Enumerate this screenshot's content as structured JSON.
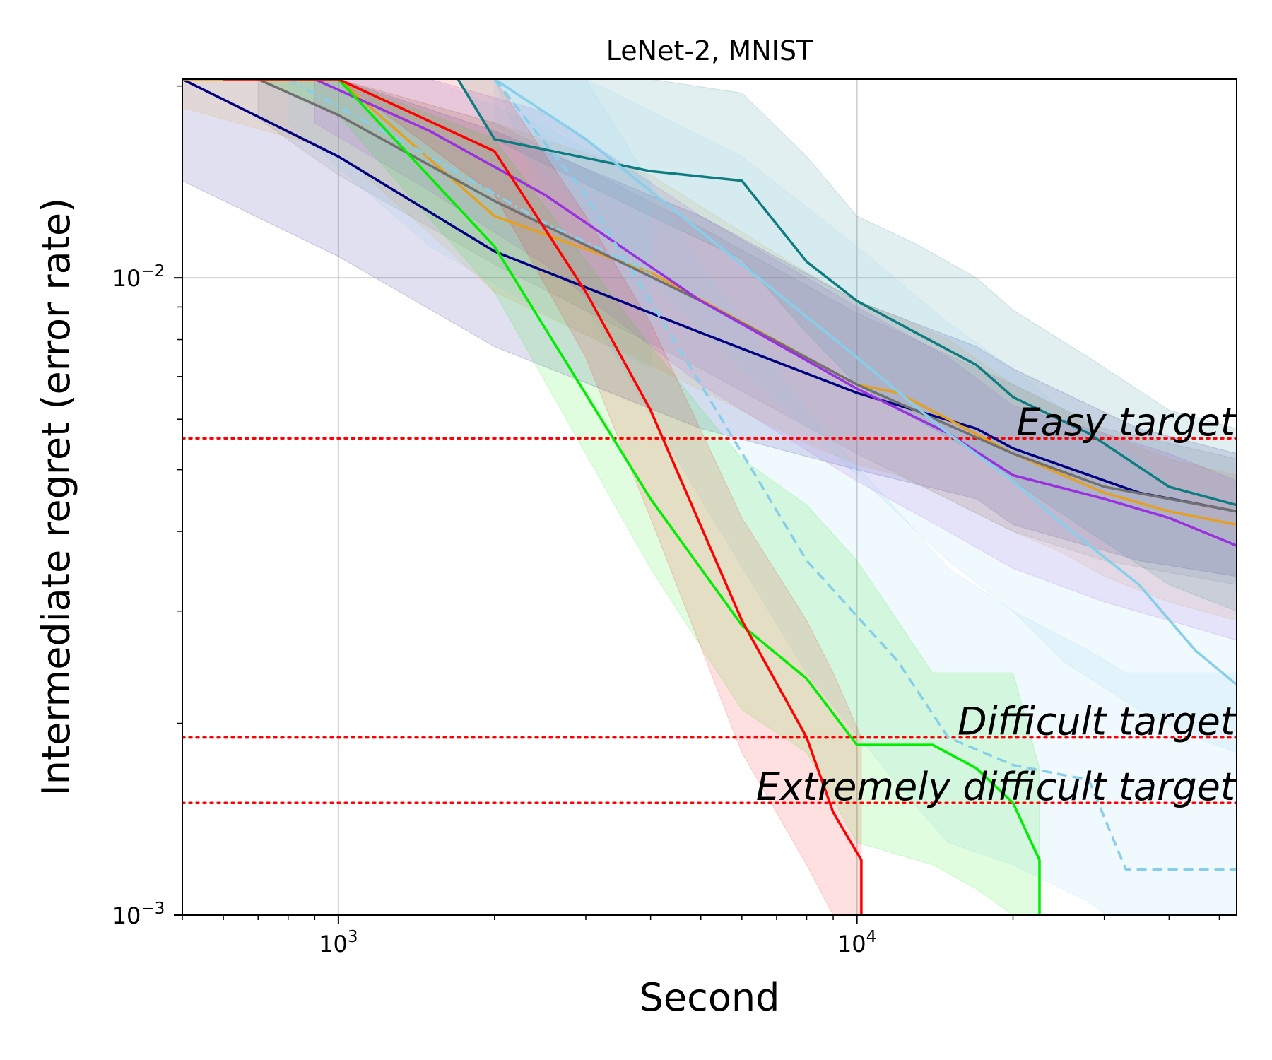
{
  "chart_data": {
    "type": "line",
    "title": "LeNet-2, MNIST",
    "xlabel": "Second",
    "ylabel": "Intermediate regret (error rate)",
    "xscale": "log",
    "yscale": "log",
    "xlim": [
      500,
      54000
    ],
    "ylim": [
      0.001,
      0.0205
    ],
    "grid": true,
    "x_ticks": [
      {
        "value": 1000,
        "base": "10",
        "exp": "3"
      },
      {
        "value": 10000,
        "base": "10",
        "exp": "4"
      }
    ],
    "y_ticks": [
      {
        "value": 0.001,
        "base": "10",
        "exp": "−3"
      },
      {
        "value": 0.01,
        "base": "10",
        "exp": "−2"
      }
    ],
    "targets": [
      {
        "name": "easy",
        "label": "Easy target",
        "value": 0.0056
      },
      {
        "name": "difficult",
        "label": "Difficult target",
        "value": 0.0019
      },
      {
        "name": "extremely-difficult",
        "label": "Extremely difficult target",
        "value": 0.0015
      }
    ],
    "target_color": "#ff0000",
    "series": [
      {
        "name": "navy",
        "color": "#000080",
        "dash": "",
        "x": [
          500,
          1000,
          2000,
          5000,
          10000,
          17000,
          20000,
          35000,
          54000
        ],
        "y": [
          0.0205,
          0.0155,
          0.011,
          0.0082,
          0.0066,
          0.0058,
          0.0054,
          0.0046,
          0.0043
        ],
        "band_upper": [
          0.0205,
          0.0205,
          0.017,
          0.0125,
          0.0092,
          0.0078,
          0.0072,
          0.0058,
          0.0053
        ],
        "band_lower": [
          0.0142,
          0.0108,
          0.0078,
          0.0058,
          0.005,
          0.0045,
          0.0041,
          0.0036,
          0.0034
        ]
      },
      {
        "name": "orange",
        "color": "#e6a020",
        "dash": "",
        "x": [
          500,
          1000,
          2000,
          4000,
          8000,
          10000,
          12000,
          15000,
          20000,
          25000,
          30000,
          40000,
          54000
        ],
        "y": [
          0.0205,
          0.0205,
          0.0125,
          0.0102,
          0.0075,
          0.0068,
          0.0066,
          0.006,
          0.0053,
          0.0049,
          0.0046,
          0.0043,
          0.0041
        ],
        "band_upper": [
          0.0205,
          0.0205,
          0.0175,
          0.0145,
          0.0102,
          0.0092,
          0.0087,
          0.008,
          0.0068,
          0.0062,
          0.0057,
          0.0052,
          0.0049
        ],
        "band_lower": [
          0.0185,
          0.0158,
          0.0095,
          0.0073,
          0.0055,
          0.0051,
          0.0049,
          0.0045,
          0.004,
          0.0037,
          0.0034,
          0.0031,
          0.0029
        ]
      },
      {
        "name": "gray",
        "color": "#707070",
        "dash": "",
        "x": [
          700,
          1000,
          2000,
          5000,
          10000,
          20000,
          30000,
          54000
        ],
        "y": [
          0.0205,
          0.018,
          0.0132,
          0.0092,
          0.0068,
          0.0053,
          0.0047,
          0.0043
        ],
        "band_upper": [
          0.0205,
          0.0205,
          0.0175,
          0.012,
          0.0088,
          0.0068,
          0.0058,
          0.0052
        ],
        "band_lower": [
          0.0178,
          0.0145,
          0.0105,
          0.0072,
          0.0053,
          0.004,
          0.0036,
          0.0033
        ]
      },
      {
        "name": "purple",
        "color": "#9a30e0",
        "dash": "",
        "x": [
          900,
          1500,
          2500,
          5000,
          10000,
          15000,
          20000,
          30000,
          40000,
          54000
        ],
        "y": [
          0.0205,
          0.017,
          0.0135,
          0.0092,
          0.0067,
          0.0057,
          0.0049,
          0.0045,
          0.0042,
          0.0038
        ],
        "band_upper": [
          0.0205,
          0.0205,
          0.0182,
          0.0125,
          0.009,
          0.0075,
          0.0063,
          0.0057,
          0.0053,
          0.0048
        ],
        "band_lower": [
          0.0175,
          0.0137,
          0.0105,
          0.0068,
          0.0048,
          0.004,
          0.0035,
          0.0031,
          0.0029,
          0.0027
        ]
      },
      {
        "name": "teal",
        "color": "#0d7c80",
        "dash": "",
        "x": [
          1700,
          2000,
          4000,
          6000,
          8000,
          10000,
          13000,
          17000,
          20000,
          28000,
          40000,
          54000
        ],
        "y": [
          0.0205,
          0.0165,
          0.0147,
          0.0142,
          0.0106,
          0.0092,
          0.0082,
          0.0073,
          0.0065,
          0.0057,
          0.0047,
          0.0044
        ],
        "band_upper": [
          0.0205,
          0.0205,
          0.0205,
          0.0195,
          0.0155,
          0.0125,
          0.0113,
          0.01,
          0.0089,
          0.0075,
          0.0062,
          0.0058
        ],
        "band_lower": [
          0.0205,
          0.0165,
          0.0125,
          0.0107,
          0.0082,
          0.0068,
          0.006,
          0.0053,
          0.0048,
          0.004,
          0.0033,
          0.003
        ]
      },
      {
        "name": "skyblue",
        "color": "#87ceeb",
        "dash": "",
        "x": [
          2000,
          3000,
          6000,
          10000,
          15000,
          20000,
          25000,
          35000,
          45000,
          54000
        ],
        "y": [
          0.0205,
          0.0165,
          0.0105,
          0.0075,
          0.0057,
          0.0048,
          0.0041,
          0.0033,
          0.0026,
          0.0023
        ],
        "band_upper": [
          0.0205,
          0.0205,
          0.0155,
          0.0112,
          0.0085,
          0.0072,
          0.0062,
          0.0052,
          0.0043,
          0.0039
        ],
        "band_lower": [
          0.0175,
          0.0125,
          0.0072,
          0.0049,
          0.0036,
          0.003,
          0.0025,
          0.0021,
          0.0019,
          0.0018
        ]
      },
      {
        "name": "skyblue-dashdot",
        "color": "#87ceeb",
        "dash": "14 6 3 6",
        "x": [
          800,
          1500,
          2500,
          4000
        ],
        "y": [
          0.0205,
          0.0155,
          0.0122,
          0.0102
        ],
        "band_upper": [
          0.0205,
          0.0205,
          0.0172,
          0.0142
        ],
        "band_lower": [
          0.0175,
          0.0112,
          0.0088,
          0.0072
        ]
      },
      {
        "name": "skyblue-dashed",
        "color": "#87ceeb",
        "dash": "14 8",
        "x": [
          2000,
          3000,
          5000,
          8000,
          12000,
          15000,
          20000,
          28000,
          33000,
          54000
        ],
        "y": [
          0.0205,
          0.0135,
          0.0068,
          0.0036,
          0.0025,
          0.0019,
          0.00172,
          0.00163,
          0.00118,
          0.00118
        ],
        "band_upper": [
          0.0205,
          0.0205,
          0.0105,
          0.0062,
          0.0043,
          0.0035,
          0.003,
          0.0026,
          0.0024,
          0.0024
        ],
        "band_lower": [
          0.0205,
          0.009,
          0.0045,
          0.0024,
          0.0016,
          0.0013,
          0.0012,
          0.00105,
          0.00095,
          0.00095
        ]
      },
      {
        "name": "green",
        "color": "#00ee00",
        "dash": "",
        "x": [
          700,
          1000,
          2000,
          4000,
          6000,
          8000,
          10000,
          14000,
          17000,
          20000,
          22500,
          22500
        ],
        "y": [
          0.0205,
          0.0205,
          0.0112,
          0.0045,
          0.00285,
          0.00235,
          0.00185,
          0.00185,
          0.0017,
          0.0015,
          0.00122,
          0.001
        ],
        "band_upper": [
          0.0205,
          0.0205,
          0.0165,
          0.0078,
          0.0052,
          0.0044,
          0.0036,
          0.0024,
          0.0024,
          0.0024,
          0.0017,
          0.0017
        ],
        "band_lower": [
          0.0205,
          0.018,
          0.0095,
          0.0035,
          0.0021,
          0.0018,
          0.0013,
          0.0012,
          0.0011,
          0.001,
          0.001,
          0.001
        ]
      },
      {
        "name": "red",
        "color": "#ff0000",
        "dash": "",
        "x": [
          600,
          1000,
          2000,
          3000,
          4000,
          6000,
          8000,
          9000,
          10200,
          10200
        ],
        "y": [
          0.0205,
          0.0205,
          0.0158,
          0.0095,
          0.0062,
          0.0029,
          0.0019,
          0.00145,
          0.00122,
          0.001
        ],
        "band_upper": [
          0.0205,
          0.0205,
          0.0205,
          0.0125,
          0.0085,
          0.0042,
          0.0029,
          0.0024,
          0.0019,
          0.0015
        ],
        "band_lower": [
          0.0205,
          0.0205,
          0.0135,
          0.0075,
          0.0042,
          0.0018,
          0.0012,
          0.001,
          0.001,
          0.001
        ]
      }
    ]
  }
}
